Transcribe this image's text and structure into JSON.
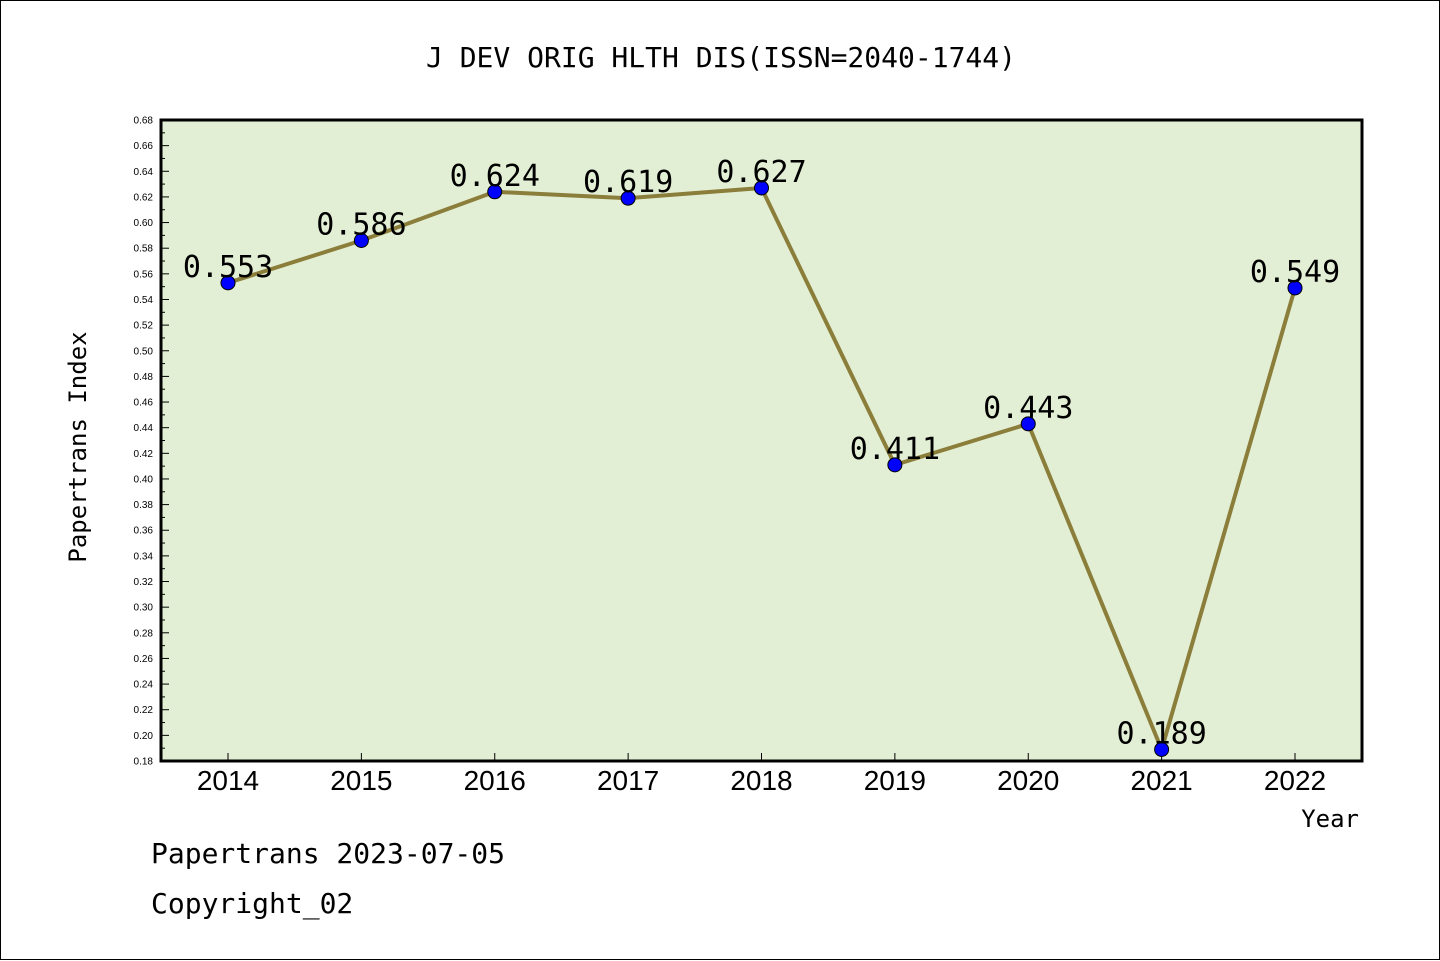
{
  "chart_data": {
    "type": "line",
    "title": "J DEV ORIG HLTH DIS(ISSN=2040-1744)",
    "xlabel": "Year",
    "ylabel": "Papertrans Index",
    "categories": [
      "2014",
      "2015",
      "2016",
      "2017",
      "2018",
      "2019",
      "2020",
      "2021",
      "2022"
    ],
    "values": [
      0.553,
      0.586,
      0.624,
      0.619,
      0.627,
      0.411,
      0.443,
      0.189,
      0.549
    ],
    "data_labels": [
      "0.553",
      "0.586",
      "0.624",
      "0.619",
      "0.627",
      "0.411",
      "0.443",
      "0.189",
      "0.549"
    ],
    "ylim": [
      0.18,
      0.68
    ],
    "yticks": [
      "0.18",
      "0.20",
      "0.22",
      "0.24",
      "0.26",
      "0.28",
      "0.30",
      "0.32",
      "0.34",
      "0.36",
      "0.38",
      "0.40",
      "0.42",
      "0.44",
      "0.46",
      "0.48",
      "0.50",
      "0.52",
      "0.54",
      "0.56",
      "0.58",
      "0.60",
      "0.62",
      "0.64",
      "0.66",
      "0.68"
    ],
    "grid": false,
    "colors": {
      "plot_background": "#e2efd4",
      "line": "#8b7d3a",
      "marker": "#0000ff"
    }
  },
  "footer": {
    "date_text": "Papertrans 2023-07-05",
    "copyright_text": "Copyright_02"
  }
}
